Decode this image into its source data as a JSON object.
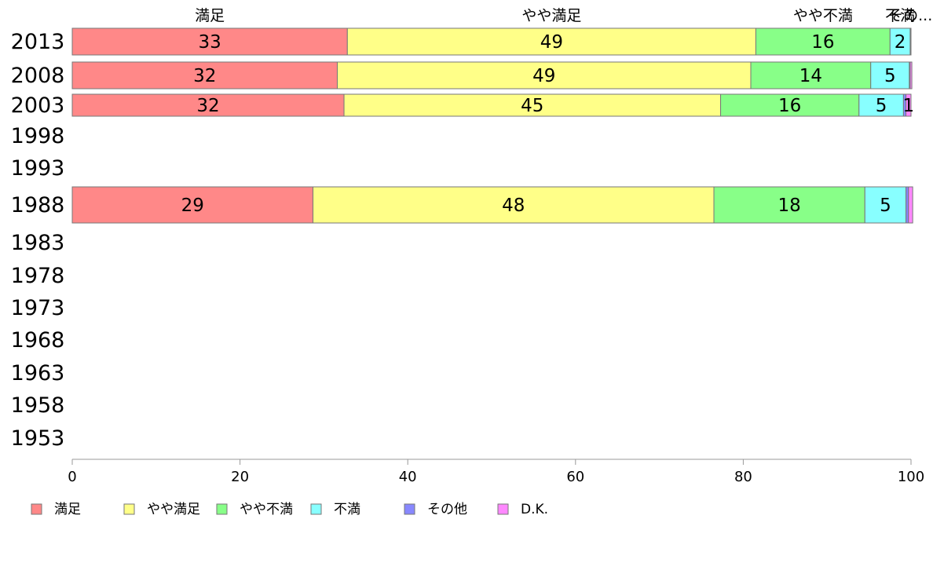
{
  "chart_data": {
    "type": "bar",
    "orientation": "horizontal",
    "stacked": true,
    "title": "",
    "xlabel": "",
    "ylabel": "",
    "xlim": [
      0,
      100
    ],
    "x_ticks": [
      0,
      20,
      40,
      60,
      80,
      100
    ],
    "grid": false,
    "legend_position": "bottom-left",
    "categories": [
      "2013",
      "2008",
      "2003",
      "1998",
      "1993",
      "1988",
      "1983",
      "1978",
      "1973",
      "1968",
      "1963",
      "1958",
      "1953"
    ],
    "series": [
      {
        "name": "満足",
        "color": "#ff8888",
        "values": [
          32.8,
          31.6,
          32.4,
          null,
          null,
          28.7,
          null,
          null,
          null,
          null,
          null,
          null,
          null
        ],
        "labels": [
          "33",
          "32",
          "32",
          "",
          "",
          "29",
          "",
          "",
          "",
          "",
          "",
          "",
          ""
        ]
      },
      {
        "name": "やや満足",
        "color": "#ffff88",
        "values": [
          48.7,
          49.3,
          44.9,
          null,
          null,
          47.8,
          null,
          null,
          null,
          null,
          null,
          null,
          null
        ],
        "labels": [
          "49",
          "49",
          "45",
          "",
          "",
          "48",
          "",
          "",
          "",
          "",
          "",
          "",
          ""
        ]
      },
      {
        "name": "やや不満",
        "color": "#88ff88",
        "values": [
          16.0,
          14.3,
          16.5,
          null,
          null,
          18.0,
          null,
          null,
          null,
          null,
          null,
          null,
          null
        ],
        "labels": [
          "16",
          "14",
          "16",
          "",
          "",
          "18",
          "",
          "",
          "",
          "",
          "",
          "",
          ""
        ]
      },
      {
        "name": "不満",
        "color": "#88ffff",
        "values": [
          2.4,
          4.6,
          5.3,
          null,
          null,
          4.9,
          null,
          null,
          null,
          null,
          null,
          null,
          null
        ],
        "labels": [
          "2",
          "5",
          "5",
          "",
          "",
          "5",
          "",
          "",
          "",
          "",
          "",
          "",
          ""
        ]
      },
      {
        "name": "その他",
        "color": "#8888ff",
        "values": [
          0.05,
          0.1,
          0.3,
          null,
          null,
          0.3,
          null,
          null,
          null,
          null,
          null,
          null,
          null
        ],
        "labels": [
          "",
          "",
          "",
          "",
          "",
          "",
          "",
          "",
          "",
          "",
          "",
          "",
          ""
        ]
      },
      {
        "name": "D.K.",
        "color": "#ff88ff",
        "values": [
          0.05,
          0.2,
          0.6,
          null,
          null,
          0.5,
          null,
          null,
          null,
          null,
          null,
          null,
          null
        ],
        "labels": [
          "",
          "",
          "1",
          "",
          "",
          "",
          "",
          "",
          "",
          "",
          "",
          "",
          ""
        ]
      }
    ],
    "top_labels": [
      "満足",
      "やや満足",
      "やや不満",
      "不満",
      "その..."
    ],
    "legend": [
      "満足",
      "やや満足",
      "やや不満",
      "不満",
      "その他",
      "D.K."
    ]
  }
}
